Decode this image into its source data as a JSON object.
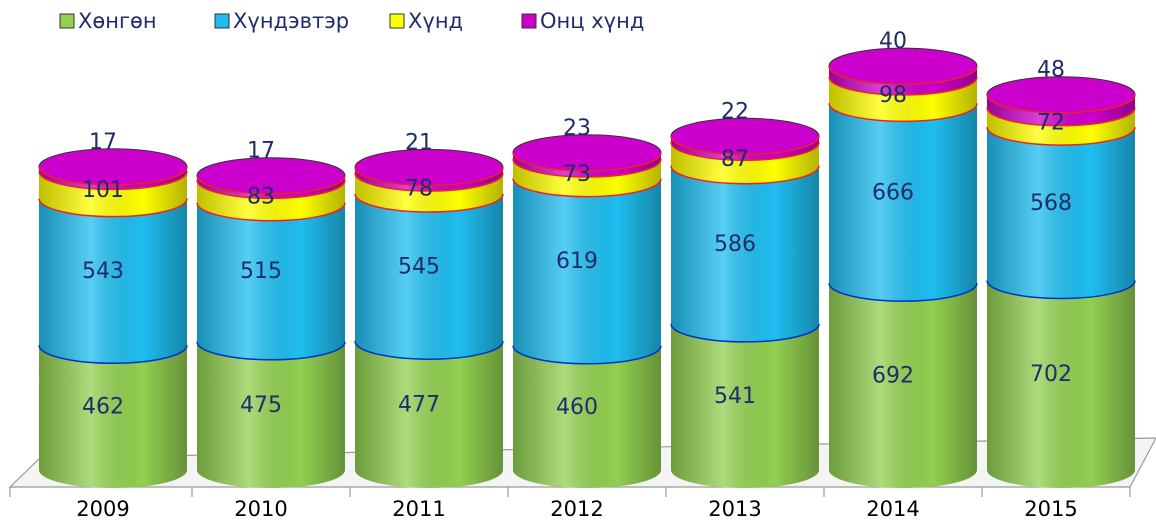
{
  "chart_data": {
    "type": "bar3d_cylinder_stacked",
    "categories": [
      "2009",
      "2010",
      "2011",
      "2012",
      "2013",
      "2014",
      "2015"
    ],
    "series": [
      {
        "name": "Хөнгөн",
        "color": "#92d050",
        "values": [
          462,
          475,
          477,
          460,
          541,
          692,
          702
        ]
      },
      {
        "name": "Хүндэвтэр",
        "color": "#1fbef0",
        "values": [
          543,
          515,
          545,
          619,
          586,
          666,
          568
        ]
      },
      {
        "name": "Хүнд",
        "color": "#ffff00",
        "values": [
          101,
          83,
          78,
          73,
          87,
          98,
          72
        ]
      },
      {
        "name": "Онц хүнд",
        "color": "#cc00cc",
        "values": [
          17,
          17,
          21,
          23,
          22,
          40,
          48
        ]
      }
    ]
  }
}
